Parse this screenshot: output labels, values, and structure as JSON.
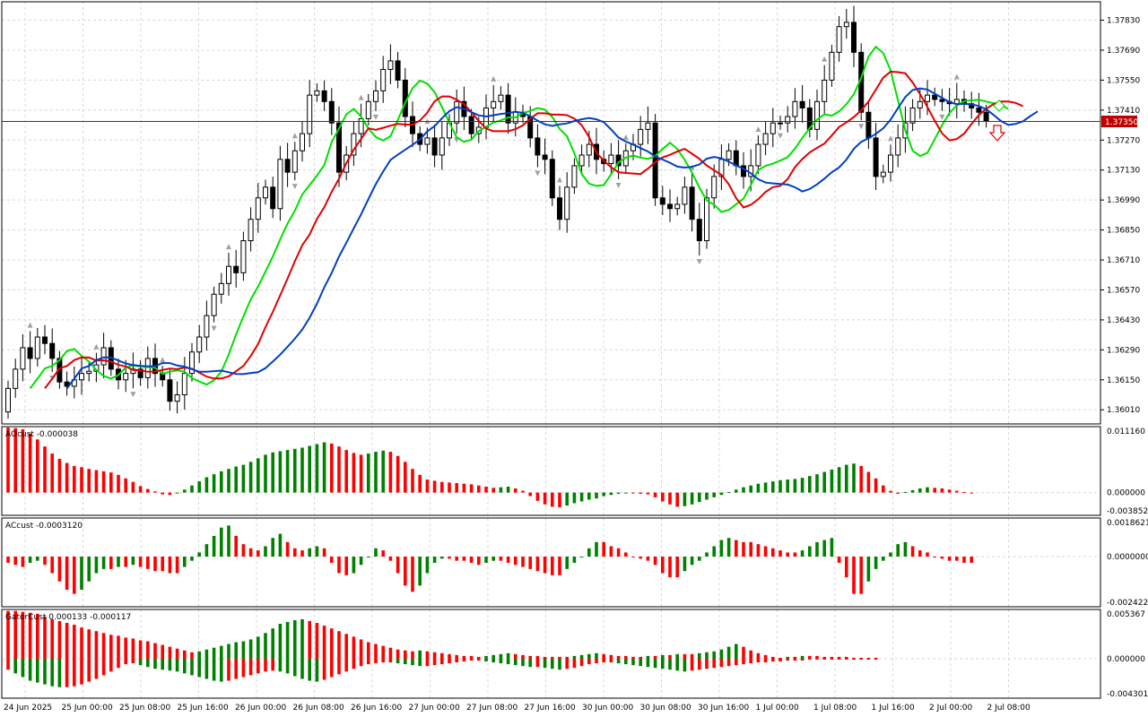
{
  "colors": {
    "background": "#ffffff",
    "grid": "#d8d8d8",
    "frame": "#000000",
    "bull_candle": "#ffffff",
    "bear_candle": "#000000",
    "ma_fast": "#00e000",
    "ma_mid": "#e00000",
    "ma_slow": "#0040c0",
    "price_line": "#c00000",
    "hist_up": "#008000",
    "hist_down": "#ff0000",
    "fractal": "#a0a0a0"
  },
  "price_panel": {
    "current_price_label": "1.37350",
    "y_ticks": [
      "1.37830",
      "1.37690",
      "1.37550",
      "1.37410",
      "1.37270",
      "1.37130",
      "1.36990",
      "1.36850",
      "1.36710",
      "1.36570",
      "1.36430",
      "1.36290",
      "1.36150",
      "1.36010"
    ],
    "icons": {
      "sell_arrow": "down-arrow-icon",
      "alligator_mark": "diamond-icon"
    }
  },
  "ao_panel": {
    "title": "AOcust -0.000038",
    "y_ticks": [
      "0.011160",
      "0.000000",
      "-0.003852"
    ]
  },
  "ac_panel": {
    "title": "ACcust -0.0003120",
    "y_ticks": [
      "0.0018621",
      "0.0000000",
      "-0.0024225"
    ]
  },
  "gator_panel": {
    "title": "GatorCust 0.000133 -0.000117",
    "y_ticks": [
      "0.005367",
      "0.000000",
      "-0.004301"
    ]
  },
  "time_axis": {
    "labels": [
      "24 Jun 2025",
      "25 Jun 00:00",
      "25 Jun 08:00",
      "25 Jun 16:00",
      "26 Jun 00:00",
      "26 Jun 08:00",
      "26 Jun 16:00",
      "27 Jun 00:00",
      "27 Jun 08:00",
      "27 Jun 16:00",
      "30 Jun 00:00",
      "30 Jun 08:00",
      "30 Jun 16:00",
      "1 Jul 00:00",
      "1 Jul 08:00",
      "1 Jul 16:00",
      "2 Jul 00:00",
      "2 Jul 08:00"
    ]
  },
  "chart_data": [
    {
      "type": "candlestick",
      "title": "",
      "symbol_range_y": [
        1.3595,
        1.3792
      ],
      "y_ticks": [
        1.3783,
        1.3769,
        1.3755,
        1.3741,
        1.3727,
        1.3713,
        1.3699,
        1.3685,
        1.3671,
        1.3657,
        1.3643,
        1.3629,
        1.3615,
        1.3601
      ],
      "current_price": 1.3735,
      "close": [
        1.3611,
        1.362,
        1.363,
        1.3625,
        1.3635,
        1.3632,
        1.3625,
        1.3614,
        1.3612,
        1.3615,
        1.3618,
        1.3619,
        1.3622,
        1.363,
        1.362,
        1.3615,
        1.3618,
        1.362,
        1.3616,
        1.3625,
        1.3618,
        1.3615,
        1.3605,
        1.3608,
        1.3618,
        1.3628,
        1.3635,
        1.3645,
        1.3655,
        1.366,
        1.3668,
        1.3665,
        1.368,
        1.369,
        1.37,
        1.3705,
        1.3695,
        1.3718,
        1.3712,
        1.3722,
        1.373,
        1.3748,
        1.375,
        1.3745,
        1.3735,
        1.3712,
        1.372,
        1.373,
        1.3737,
        1.3745,
        1.375,
        1.376,
        1.3764,
        1.3755,
        1.3738,
        1.373,
        1.3725,
        1.3728,
        1.372,
        1.3728,
        1.3735,
        1.3745,
        1.3738,
        1.373,
        1.3733,
        1.3742,
        1.3745,
        1.3748,
        1.3735,
        1.374,
        1.3738,
        1.3728,
        1.372,
        1.3718,
        1.37,
        1.369,
        1.3705,
        1.3715,
        1.372,
        1.3725,
        1.3718,
        1.3716,
        1.372,
        1.3715,
        1.3722,
        1.3725,
        1.3732,
        1.3735,
        1.37,
        1.3697,
        1.3695,
        1.3697,
        1.3705,
        1.369,
        1.368,
        1.37,
        1.371,
        1.3718,
        1.3722,
        1.3715,
        1.371,
        1.3715,
        1.3725,
        1.373,
        1.3735,
        1.3735,
        1.3738,
        1.3745,
        1.3742,
        1.3732,
        1.3745,
        1.3755,
        1.3768,
        1.378,
        1.3782,
        1.3768,
        1.374,
        1.3728,
        1.371,
        1.3712,
        1.372,
        1.3728,
        1.3735,
        1.3742,
        1.3745,
        1.3748,
        1.3746,
        1.3745,
        1.3744,
        1.3746,
        1.3744,
        1.3742,
        1.374,
        1.3736
      ],
      "series": [
        {
          "name": "",
          "kind": "ma_fast"
        },
        {
          "name": "",
          "kind": "ma_mid"
        },
        {
          "name": "",
          "kind": "ma_slow"
        }
      ]
    },
    {
      "type": "histogram",
      "title": "AOcust -0.000038",
      "ylim": [
        -0.003852,
        0.01116
      ],
      "values": [
        0.011,
        0.0109,
        0.0107,
        0.01,
        0.009,
        0.0078,
        0.0066,
        0.0057,
        0.005,
        0.0045,
        0.0043,
        0.004,
        0.0038,
        0.0036,
        0.0034,
        0.003,
        0.0024,
        0.0018,
        0.0011,
        0.0006,
        0.0002,
        -0.0003,
        -0.0004,
        0.0,
        0.0005,
        0.0012,
        0.0019,
        0.0026,
        0.0031,
        0.0036,
        0.004,
        0.0044,
        0.0047,
        0.0052,
        0.0058,
        0.0064,
        0.0068,
        0.007,
        0.0072,
        0.0074,
        0.0076,
        0.0079,
        0.0082,
        0.0085,
        0.0083,
        0.0078,
        0.0072,
        0.0067,
        0.0064,
        0.0066,
        0.0069,
        0.0071,
        0.0069,
        0.0062,
        0.0052,
        0.004,
        0.003,
        0.0022,
        0.002,
        0.0018,
        0.0017,
        0.0016,
        0.0015,
        0.0014,
        0.0012,
        0.001,
        0.0008,
        0.0009,
        0.001,
        0.0007,
        0.0003,
        -0.0006,
        -0.0014,
        -0.002,
        -0.0024,
        -0.0025,
        -0.0022,
        -0.0018,
        -0.0015,
        -0.0012,
        -0.001,
        -0.0006,
        -0.0004,
        -0.0002,
        0.0,
        -0.0001,
        -0.0002,
        -0.0003,
        -0.0008,
        -0.0015,
        -0.002,
        -0.0024,
        -0.0023,
        -0.002,
        -0.0016,
        -0.0012,
        -0.0008,
        -0.0004,
        0.0001,
        0.0005,
        0.0009,
        0.0012,
        0.0015,
        0.0017,
        0.0019,
        0.0021,
        0.0022,
        0.0023,
        0.0025,
        0.0028,
        0.0031,
        0.0035,
        0.0039,
        0.0043,
        0.0047,
        0.0049,
        0.0045,
        0.0035,
        0.0024,
        0.0012,
        0.0003,
        -0.0002,
        0.0001,
        0.0004,
        0.0007,
        0.0009,
        0.0008,
        0.0007,
        0.0005,
        0.0003,
        0.0001,
        -0.0
      ]
    },
    {
      "type": "histogram",
      "title": "ACcust -0.0003120",
      "ylim": [
        -0.0024225,
        0.0018621
      ],
      "values": [
        -0.0003,
        -0.0004,
        -0.0005,
        -0.0003,
        -0.0002,
        -0.0004,
        -0.0008,
        -0.0012,
        -0.0016,
        -0.0018,
        -0.0016,
        -0.0012,
        -0.0008,
        -0.0006,
        -0.0006,
        -0.0005,
        -0.0005,
        -0.0004,
        -0.0005,
        -0.0006,
        -0.0007,
        -0.0007,
        -0.0008,
        -0.0008,
        -0.0005,
        -0.0002,
        0.0002,
        0.0006,
        0.001,
        0.0014,
        0.0015,
        0.001,
        0.0006,
        0.0004,
        0.0003,
        0.0005,
        0.0009,
        0.0011,
        0.0007,
        0.0004,
        0.0003,
        0.0004,
        0.0005,
        0.0004,
        -0.0003,
        -0.0008,
        -0.0009,
        -0.0008,
        -0.0004,
        0.0,
        0.0004,
        0.0003,
        -0.0002,
        -0.0008,
        -0.0014,
        -0.0017,
        -0.0014,
        -0.0008,
        -0.0003,
        -0.0001,
        -0.0001,
        -0.0002,
        -0.0002,
        -0.0003,
        -0.0004,
        -0.0003,
        -0.0002,
        -0.0002,
        -0.0003,
        -0.0004,
        -0.0005,
        -0.0006,
        -0.0007,
        -0.0008,
        -0.0009,
        -0.0009,
        -0.0006,
        -0.0003,
        0.0,
        0.0004,
        0.0007,
        0.0007,
        0.0005,
        0.0004,
        0.0002,
        0.0,
        -0.0001,
        -0.0002,
        -0.0004,
        -0.0008,
        -0.001,
        -0.001,
        -0.0007,
        -0.0004,
        -0.0002,
        0.0002,
        0.0005,
        0.0008,
        0.0009,
        0.0008,
        0.0007,
        0.0007,
        0.0006,
        0.0005,
        0.0004,
        0.0003,
        0.0002,
        0.0002,
        0.0003,
        0.0005,
        0.0007,
        0.0008,
        0.0009,
        -0.0003,
        -0.001,
        -0.0018,
        -0.0018,
        -0.0012,
        -0.0006,
        -0.0002,
        0.0002,
        0.0006,
        0.0007,
        0.0005,
        0.0003,
        0.0002,
        0.0,
        -0.0001,
        -0.0002,
        -0.0002,
        -0.0003,
        -0.0003
      ]
    },
    {
      "type": "histogram",
      "title": "GatorCust 0.000133 -0.000117",
      "ylim": [
        -0.004301,
        0.005367
      ],
      "upper": [
        0.0052,
        0.0052,
        0.0051,
        0.005,
        0.0049,
        0.0046,
        0.0043,
        0.0041,
        0.0039,
        0.0037,
        0.0034,
        0.0032,
        0.003,
        0.0028,
        0.0026,
        0.0025,
        0.0023,
        0.0022,
        0.002,
        0.0019,
        0.0017,
        0.0015,
        0.0013,
        0.0011,
        0.0009,
        0.0007,
        0.0008,
        0.001,
        0.0012,
        0.0014,
        0.0016,
        0.0018,
        0.0019,
        0.0021,
        0.0024,
        0.0028,
        0.0033,
        0.0038,
        0.004,
        0.0042,
        0.0043,
        0.0041,
        0.0039,
        0.0036,
        0.0033,
        0.003,
        0.0027,
        0.0024,
        0.0021,
        0.0018,
        0.0016,
        0.0014,
        0.0012,
        0.001,
        0.0009,
        0.0008,
        0.0009,
        0.0008,
        0.0007,
        0.0006,
        0.0005,
        0.0004,
        0.0003,
        0.0003,
        0.0002,
        0.0003,
        0.0004,
        0.0005,
        0.0006,
        0.0005,
        0.0004,
        0.0003,
        0.0003,
        0.0002,
        0.0002,
        0.0002,
        0.0002,
        0.0003,
        0.0004,
        0.0005,
        0.0006,
        0.0005,
        0.0004,
        0.0003,
        0.0003,
        0.0002,
        0.0002,
        0.0003,
        0.0003,
        0.0004,
        0.0004,
        0.0005,
        0.0005,
        0.0005,
        0.0006,
        0.0007,
        0.0008,
        0.001,
        0.0013,
        0.0016,
        0.0013,
        0.0009,
        0.0006,
        0.0004,
        0.0002,
        0.0001,
        0.0002,
        0.0002,
        0.0003,
        0.0003,
        0.0003,
        0.0002,
        0.0002,
        0.0002,
        0.0002,
        0.0001,
        0.0001,
        0.0001,
        0.0001
      ],
      "lower": [
        -0.0012,
        -0.0016,
        -0.002,
        -0.0024,
        -0.0026,
        -0.0028,
        -0.003,
        -0.0031,
        -0.0031,
        -0.003,
        -0.0028,
        -0.0025,
        -0.0022,
        -0.0018,
        -0.0014,
        -0.001,
        -0.0006,
        -0.0005,
        -0.0007,
        -0.0009,
        -0.0011,
        -0.0012,
        -0.0013,
        -0.0014,
        -0.0016,
        -0.0018,
        -0.002,
        -0.0022,
        -0.0024,
        -0.0025,
        -0.0024,
        -0.0022,
        -0.002,
        -0.0018,
        -0.0016,
        -0.0014,
        -0.0013,
        -0.0014,
        -0.0016,
        -0.0019,
        -0.0022,
        -0.0024,
        -0.0025,
        -0.0023,
        -0.002,
        -0.0017,
        -0.0014,
        -0.0011,
        -0.0008,
        -0.0006,
        -0.0005,
        -0.0004,
        -0.0004,
        -0.0005,
        -0.0006,
        -0.0007,
        -0.0008,
        -0.0008,
        -0.0007,
        -0.0006,
        -0.0005,
        -0.0004,
        -0.0003,
        -0.0002,
        -0.0002,
        -0.0003,
        -0.0004,
        -0.0005,
        -0.0006,
        -0.0007,
        -0.0008,
        -0.0009,
        -0.0009,
        -0.001,
        -0.0011,
        -0.0012,
        -0.0011,
        -0.001,
        -0.0008,
        -0.0006,
        -0.0005,
        -0.0004,
        -0.0004,
        -0.0005,
        -0.0006,
        -0.0007,
        -0.0008,
        -0.0009,
        -0.001,
        -0.0011,
        -0.0012,
        -0.0013,
        -0.0014,
        -0.0013,
        -0.0012,
        -0.0011,
        -0.001,
        -0.0009,
        -0.0008,
        -0.0007,
        -0.0006,
        -0.0005,
        -0.0004,
        -0.0004,
        -0.0003,
        -0.0003,
        -0.0002,
        -0.0002,
        -0.0002,
        -0.0001,
        -0.0001,
        -0.0001,
        -0.0001,
        -0.0001,
        -0.0001,
        -0.0001,
        -0.0001,
        -0.0001,
        -0.0001
      ]
    }
  ]
}
